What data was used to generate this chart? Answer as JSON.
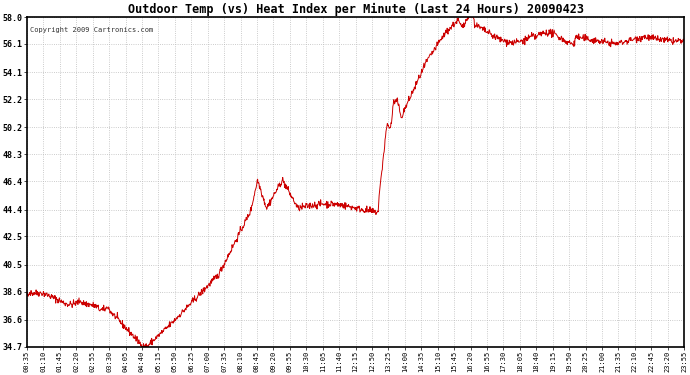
{
  "title": "Outdoor Temp (vs) Heat Index per Minute (Last 24 Hours) 20090423",
  "copyright": "Copyright 2009 Cartronics.com",
  "bg_color": "#ffffff",
  "plot_bg_color": "#ffffff",
  "grid_color": "#aaaaaa",
  "line_color": "#cc0000",
  "y_ticks": [
    34.7,
    36.6,
    38.6,
    40.5,
    42.5,
    44.4,
    46.4,
    48.3,
    50.2,
    52.2,
    54.1,
    56.1,
    58.0
  ],
  "ylim": [
    34.7,
    58.0
  ],
  "x_labels": [
    "00:35",
    "01:10",
    "01:45",
    "02:20",
    "02:55",
    "03:30",
    "04:05",
    "04:40",
    "05:15",
    "05:50",
    "06:25",
    "07:00",
    "07:35",
    "08:10",
    "08:45",
    "09:20",
    "09:55",
    "10:30",
    "11:05",
    "11:40",
    "12:15",
    "12:50",
    "13:25",
    "14:00",
    "14:35",
    "15:10",
    "15:45",
    "16:20",
    "16:55",
    "17:30",
    "18:05",
    "18:40",
    "19:15",
    "19:50",
    "20:25",
    "21:00",
    "21:35",
    "22:10",
    "22:45",
    "23:20",
    "23:55"
  ],
  "figsize": [
    6.9,
    3.75
  ],
  "dpi": 100
}
